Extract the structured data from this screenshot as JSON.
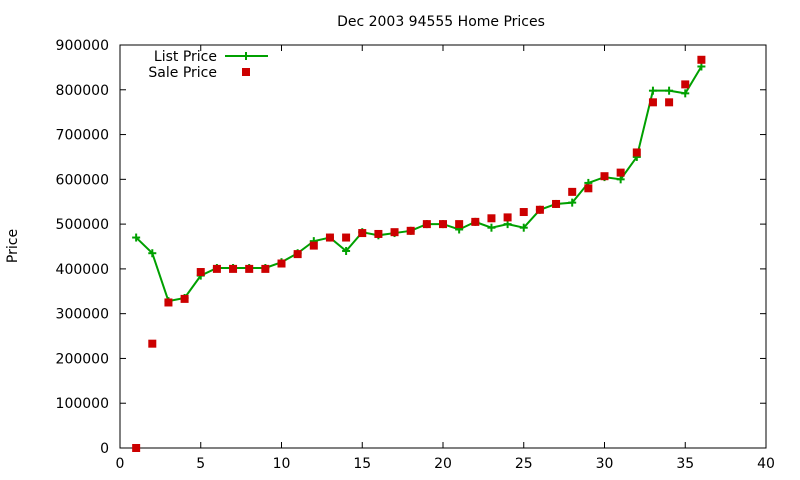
{
  "chart_data": {
    "type": "line",
    "title": "Dec 2003 94555 Home Prices",
    "xlabel": "",
    "ylabel": "Price",
    "xlim": [
      0,
      40
    ],
    "ylim": [
      0,
      900000
    ],
    "xticks": [
      "0",
      "5",
      "10",
      "15",
      "20",
      "25",
      "30",
      "35",
      "40"
    ],
    "yticks": [
      "0",
      "100000",
      "200000",
      "300000",
      "400000",
      "500000",
      "600000",
      "700000",
      "800000",
      "900000"
    ],
    "grid": false,
    "legend_position": "top-left",
    "series": [
      {
        "name": "List Price",
        "style": "line+cross",
        "color": "#00a000",
        "x": [
          1,
          2,
          3,
          4,
          5,
          6,
          7,
          8,
          9,
          10,
          11,
          12,
          13,
          14,
          15,
          16,
          17,
          18,
          19,
          20,
          21,
          22,
          23,
          24,
          25,
          26,
          27,
          28,
          29,
          30,
          31,
          32,
          33,
          34,
          35,
          36
        ],
        "y": [
          470000,
          435000,
          328000,
          335000,
          385000,
          402000,
          402000,
          402000,
          402000,
          415000,
          435000,
          462000,
          470000,
          440000,
          482000,
          475000,
          480000,
          485000,
          500000,
          500000,
          488000,
          505000,
          492000,
          500000,
          492000,
          532000,
          545000,
          548000,
          592000,
          605000,
          600000,
          650000,
          798000,
          798000,
          792000,
          852000
        ]
      },
      {
        "name": "Sale Price",
        "style": "square",
        "color": "#cc0000",
        "x": [
          1,
          2,
          3,
          4,
          5,
          6,
          7,
          8,
          9,
          10,
          11,
          12,
          13,
          14,
          15,
          16,
          17,
          18,
          19,
          20,
          21,
          22,
          23,
          24,
          25,
          26,
          27,
          28,
          29,
          30,
          31,
          32,
          33,
          34,
          35,
          36
        ],
        "y": [
          0,
          233000,
          325000,
          333000,
          393000,
          400000,
          400000,
          400000,
          400000,
          412000,
          433000,
          452000,
          470000,
          470000,
          480000,
          478000,
          482000,
          485000,
          500000,
          500000,
          500000,
          505000,
          513000,
          515000,
          527000,
          532000,
          545000,
          572000,
          580000,
          607000,
          615000,
          660000,
          772000,
          772000,
          812000,
          867000
        ]
      }
    ]
  }
}
